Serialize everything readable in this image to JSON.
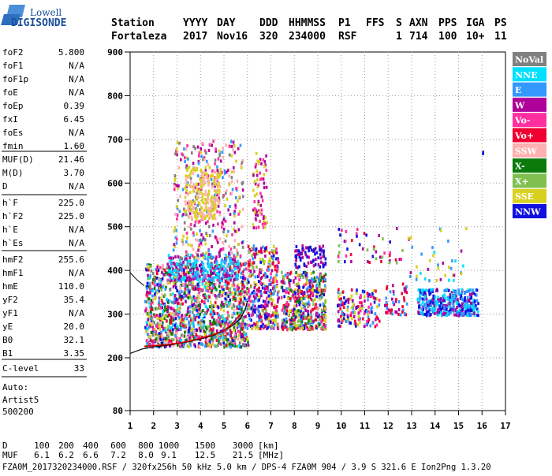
{
  "logo": {
    "line1": "Lowell",
    "line2": "DIGISONDE"
  },
  "header": {
    "row1": [
      {
        "key": "station_label",
        "text": "Station"
      },
      {
        "key": "yyyy_label",
        "text": "YYYY"
      },
      {
        "key": "day_label",
        "text": "DAY"
      },
      {
        "key": "ddd_label",
        "text": "DDD"
      },
      {
        "key": "hhmmss_label",
        "text": "HHMMSS"
      },
      {
        "key": "p1_label",
        "text": "P1"
      },
      {
        "key": "ffs_label",
        "text": "FFS"
      },
      {
        "key": "s_label",
        "text": "S"
      },
      {
        "key": "axn_label",
        "text": "AXN"
      },
      {
        "key": "pps_label",
        "text": "PPS"
      },
      {
        "key": "iga_label",
        "text": "IGA"
      },
      {
        "key": "ps_label",
        "text": "PS"
      }
    ],
    "row2": [
      {
        "key": "station",
        "text": "Fortaleza"
      },
      {
        "key": "yyyy",
        "text": "2017"
      },
      {
        "key": "day",
        "text": "Nov16"
      },
      {
        "key": "ddd",
        "text": "320"
      },
      {
        "key": "hhmmss",
        "text": "234000"
      },
      {
        "key": "p1",
        "text": "RSF"
      },
      {
        "key": "s",
        "text": "1"
      },
      {
        "key": "axn",
        "text": "714"
      },
      {
        "key": "pps",
        "text": "100"
      },
      {
        "key": "iga",
        "text": "10+"
      },
      {
        "key": "ps",
        "text": "11"
      }
    ]
  },
  "params_group1": [
    {
      "name": "foF2",
      "value": "5.800"
    },
    {
      "name": "foF1",
      "value": "N/A"
    },
    {
      "name": "foF1p",
      "value": "N/A"
    },
    {
      "name": "foE",
      "value": "N/A"
    },
    {
      "name": "foEp",
      "value": "0.39"
    },
    {
      "name": "fxI",
      "value": "6.45"
    },
    {
      "name": "foEs",
      "value": "N/A"
    },
    {
      "name": "fmin",
      "value": "1.60"
    }
  ],
  "params_group2": [
    {
      "name": "MUF(D)",
      "value": "21.46"
    },
    {
      "name": "M(D)",
      "value": "3.70"
    },
    {
      "name": "D",
      "value": "N/A"
    }
  ],
  "params_group3": [
    {
      "name": "h`F",
      "value": "225.0"
    },
    {
      "name": "h`F2",
      "value": "225.0"
    },
    {
      "name": "h`E",
      "value": "N/A"
    },
    {
      "name": "h`Es",
      "value": "N/A"
    }
  ],
  "params_group4": [
    {
      "name": "hmF2",
      "value": "255.6"
    },
    {
      "name": "hmF1",
      "value": "N/A"
    },
    {
      "name": "hmE",
      "value": "110.0"
    },
    {
      "name": "yF2",
      "value": "35.4"
    },
    {
      "name": "yF1",
      "value": "N/A"
    },
    {
      "name": "yE",
      "value": "20.0"
    },
    {
      "name": "B0",
      "value": "32.1"
    },
    {
      "name": "B1",
      "value": "3.35"
    }
  ],
  "c_level": {
    "name": "C-level",
    "value": "33"
  },
  "auto": {
    "line1": "Auto:",
    "line2": "Artist5",
    "line3": "500200"
  },
  "legend": [
    {
      "label": "NoVal",
      "color": "#808080"
    },
    {
      "label": "NNE",
      "color": "#00e0ff"
    },
    {
      "label": "E",
      "color": "#3399ff"
    },
    {
      "label": "W",
      "color": "#b0009a"
    },
    {
      "label": "Vo-",
      "color": "#ff2fa0"
    },
    {
      "label": "Vo+",
      "color": "#f00030"
    },
    {
      "label": "SSW",
      "color": "#ffb0b0"
    },
    {
      "label": "X-",
      "color": "#0a7a0a"
    },
    {
      "label": "X+",
      "color": "#80c050"
    },
    {
      "label": "SSE",
      "color": "#d8d020"
    },
    {
      "label": "NNW",
      "color": "#1010e0"
    }
  ],
  "mufd": {
    "d_label": "D",
    "d_values": [
      "100",
      "200",
      "400",
      "600",
      "800",
      "1000",
      "1500",
      "3000"
    ],
    "d_unit": "[km]",
    "muf_label": "MUF",
    "muf_values": [
      "6.1",
      "6.2",
      "6.6",
      "7.2",
      "8.0",
      "9.1",
      "12.5",
      "21.5"
    ],
    "muf_unit": "[MHz]"
  },
  "footer": {
    "text": "FZA0M_2017320234000.RSF / 320fx256h 50 kHz 5.0 km / DPS-4 FZA0M 904 / 3.9 S 321.6 E  Ion2Png 1.3.20"
  },
  "chart_data": {
    "type": "scatter",
    "title": "",
    "xlabel": "",
    "ylabel": "",
    "xlim": [
      1,
      17
    ],
    "ylim": [
      80,
      900
    ],
    "x_ticks": [
      "1",
      "2",
      "3",
      "4",
      "5",
      "6",
      "7",
      "8",
      "9",
      "10",
      "11",
      "12",
      "13",
      "14",
      "15",
      "16",
      "17"
    ],
    "y_ticks": [
      "80",
      "200",
      "300",
      "400",
      "500",
      "600",
      "700",
      "800",
      "900"
    ],
    "grid": "dotted",
    "legend_placement": "right",
    "profile_curve": [
      [
        1.0,
        210
      ],
      [
        1.5,
        220
      ],
      [
        2.0,
        225
      ],
      [
        2.5,
        228
      ],
      [
        3.0,
        232
      ],
      [
        3.5,
        237
      ],
      [
        4.0,
        243
      ],
      [
        4.5,
        250
      ],
      [
        5.0,
        262
      ],
      [
        5.4,
        275
      ],
      [
        5.7,
        290
      ],
      [
        5.9,
        310
      ],
      [
        6.0,
        330
      ]
    ],
    "trace_curve": [
      [
        1.6,
        226
      ],
      [
        2.0,
        228
      ],
      [
        2.5,
        230
      ],
      [
        3.0,
        233
      ],
      [
        3.5,
        238
      ],
      [
        4.0,
        245
      ],
      [
        4.5,
        252
      ],
      [
        5.0,
        262
      ],
      [
        5.4,
        280
      ],
      [
        5.7,
        300
      ]
    ],
    "top_curve": [
      [
        1.0,
        395
      ],
      [
        1.3,
        378
      ],
      [
        1.6,
        365
      ]
    ],
    "clusters": [
      {
        "x": [
          1.6,
          6.0
        ],
        "h": [
          228,
          420
        ],
        "n": 1400,
        "cols": [
          "#b0009a",
          "#3399ff",
          "#f00030",
          "#ff2fa0",
          "#0a7a0a",
          "#80c050",
          "#d8d020",
          "#1010e0",
          "#00e0ff",
          "#ffb0b0",
          "#808080"
        ]
      },
      {
        "x": [
          2.6,
          5.6
        ],
        "h": [
          380,
          440
        ],
        "n": 260,
        "cols": [
          "#3399ff",
          "#00e0ff",
          "#b0009a"
        ]
      },
      {
        "x": [
          2.8,
          5.8
        ],
        "h": [
          430,
          700
        ],
        "n": 360,
        "cols": [
          "#b0009a",
          "#ff2fa0",
          "#d8d020",
          "#ffb0b0",
          "#3399ff",
          "#808080"
        ]
      },
      {
        "x": [
          3.3,
          4.8
        ],
        "h": [
          520,
          640
        ],
        "n": 200,
        "cols": [
          "#d8d020",
          "#ffb0b0"
        ]
      },
      {
        "x": [
          6.0,
          7.3
        ],
        "h": [
          270,
          460
        ],
        "n": 360,
        "cols": [
          "#f00030",
          "#ff2fa0",
          "#b0009a",
          "#3399ff",
          "#d8d020",
          "#80c050",
          "#1010e0"
        ]
      },
      {
        "x": [
          6.2,
          6.8
        ],
        "h": [
          500,
          680
        ],
        "n": 70,
        "cols": [
          "#ff2fa0",
          "#d8d020",
          "#b0009a"
        ]
      },
      {
        "x": [
          7.4,
          9.3
        ],
        "h": [
          268,
          400
        ],
        "n": 480,
        "cols": [
          "#f00030",
          "#ff2fa0",
          "#b0009a",
          "#d8d020",
          "#3399ff",
          "#0a7a0a",
          "#80c050",
          "#1010e0"
        ]
      },
      {
        "x": [
          8.0,
          9.3
        ],
        "h": [
          410,
          460
        ],
        "n": 80,
        "cols": [
          "#1010e0",
          "#b0009a"
        ]
      },
      {
        "x": [
          9.8,
          11.6
        ],
        "h": [
          275,
          360
        ],
        "n": 160,
        "cols": [
          "#f00030",
          "#1010e0",
          "#b0009a",
          "#ff2fa0",
          "#d8d020",
          "#3399ff"
        ]
      },
      {
        "x": [
          9.8,
          12.6
        ],
        "h": [
          420,
          500
        ],
        "n": 50,
        "cols": [
          "#b0009a",
          "#f00030",
          "#1010e0",
          "#80c050",
          "#ff2fa0"
        ]
      },
      {
        "x": [
          11.8,
          12.8
        ],
        "h": [
          300,
          380
        ],
        "n": 50,
        "cols": [
          "#b0009a",
          "#3399ff",
          "#f00030"
        ]
      },
      {
        "x": [
          13.2,
          15.8
        ],
        "h": [
          300,
          360
        ],
        "n": 380,
        "cols": [
          "#1010e0",
          "#3399ff",
          "#b0009a",
          "#00e0ff"
        ]
      },
      {
        "x": [
          12.8,
          15.3
        ],
        "h": [
          380,
          500
        ],
        "n": 40,
        "cols": [
          "#00e0ff",
          "#3399ff",
          "#d8d020",
          "#b0009a"
        ]
      },
      {
        "x": [
          15.9,
          16.1
        ],
        "h": [
          670,
          680
        ],
        "n": 2,
        "cols": [
          "#1010e0"
        ]
      }
    ]
  }
}
